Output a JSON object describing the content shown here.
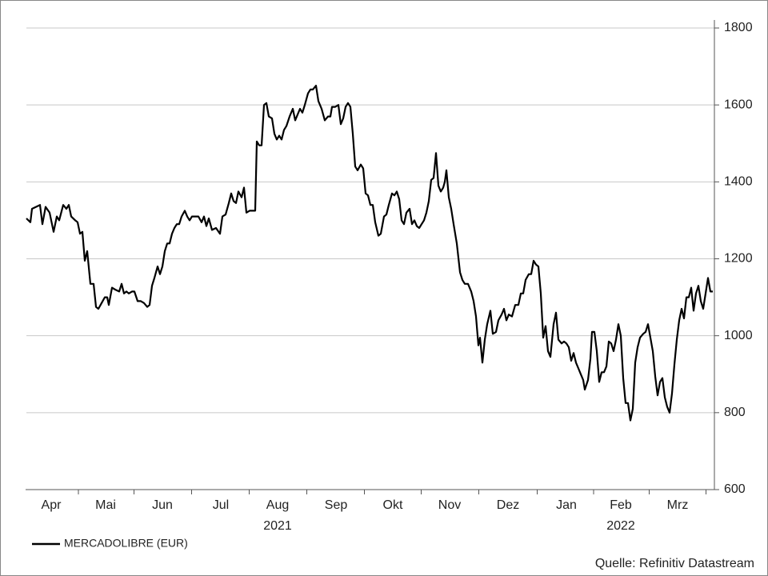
{
  "chart_data": {
    "type": "line",
    "series": [
      {
        "name": "MERCADOLIBRE (EUR)",
        "color": "#000000",
        "x": [
          33,
          38,
          40,
          45,
          50,
          53,
          57,
          62,
          67,
          71,
          74,
          79,
          83,
          86,
          89,
          94,
          97,
          100,
          103,
          106,
          109,
          113,
          117,
          120,
          123,
          127,
          131,
          134,
          136,
          140,
          144,
          149,
          152,
          155,
          158,
          161,
          165,
          168,
          172,
          176,
          180,
          184,
          187,
          190,
          193,
          197,
          200,
          203,
          206,
          209,
          212,
          215,
          218,
          221,
          224,
          227,
          231,
          234,
          237,
          240,
          244,
          248,
          252,
          255,
          258,
          261,
          265,
          270,
          275,
          278,
          282,
          286,
          289,
          292,
          295,
          298,
          302,
          305,
          308,
          312,
          316,
          319,
          321,
          324,
          327,
          330,
          333,
          336,
          340,
          343,
          346,
          349,
          352,
          355,
          358,
          362,
          366,
          369,
          372,
          375,
          378,
          381,
          385,
          388,
          391,
          395,
          398,
          402,
          406,
          410,
          413,
          415,
          419,
          423,
          426,
          429,
          432,
          435,
          438,
          441,
          444,
          447,
          451,
          454,
          457,
          460,
          463,
          466,
          469,
          473,
          476,
          480,
          483,
          486,
          490,
          493,
          496,
          499,
          502,
          505,
          508,
          512,
          515,
          518,
          521,
          524,
          527,
          530,
          533,
          536,
          539,
          542,
          545,
          548,
          551,
          554,
          556,
          558,
          561,
          564,
          567,
          571,
          575,
          578,
          581,
          585,
          589,
          592,
          595,
          598,
          600,
          603,
          606,
          609,
          613,
          616,
          620,
          623,
          627,
          630,
          633,
          636,
          640,
          644,
          648,
          651,
          654,
          657,
          661,
          664,
          667,
          670,
          673,
          676,
          679,
          682,
          685,
          688,
          692,
          695,
          698,
          702,
          705,
          708,
          711,
          714,
          717,
          720,
          723,
          726,
          729,
          731,
          735,
          738,
          740,
          743,
          746,
          749,
          752,
          755,
          758,
          761,
          764,
          767,
          770,
          773,
          776,
          779,
          782,
          785,
          788,
          791,
          794,
          797,
          800,
          804,
          807,
          810,
          813,
          816,
          819,
          822,
          825,
          828,
          831,
          834,
          837,
          840,
          843,
          846,
          849,
          852,
          855,
          858,
          861,
          864,
          867,
          870,
          873,
          876,
          879,
          882,
          885,
          888,
          891
        ],
        "values": [
          1305,
          1295,
          1330,
          1335,
          1340,
          1290,
          1335,
          1320,
          1270,
          1310,
          1300,
          1340,
          1330,
          1340,
          1310,
          1300,
          1295,
          1265,
          1270,
          1195,
          1220,
          1135,
          1135,
          1075,
          1070,
          1085,
          1100,
          1100,
          1080,
          1125,
          1120,
          1115,
          1135,
          1110,
          1115,
          1110,
          1115,
          1115,
          1090,
          1090,
          1085,
          1075,
          1080,
          1130,
          1150,
          1180,
          1160,
          1180,
          1220,
          1240,
          1240,
          1265,
          1280,
          1290,
          1290,
          1310,
          1325,
          1310,
          1300,
          1310,
          1310,
          1310,
          1295,
          1310,
          1285,
          1305,
          1275,
          1280,
          1265,
          1310,
          1315,
          1345,
          1370,
          1350,
          1345,
          1375,
          1360,
          1385,
          1320,
          1325,
          1325,
          1325,
          1505,
          1495,
          1495,
          1600,
          1605,
          1570,
          1565,
          1525,
          1510,
          1520,
          1510,
          1535,
          1545,
          1570,
          1590,
          1560,
          1575,
          1590,
          1580,
          1600,
          1630,
          1640,
          1640,
          1650,
          1610,
          1590,
          1560,
          1570,
          1570,
          1595,
          1595,
          1600,
          1550,
          1565,
          1595,
          1605,
          1595,
          1525,
          1440,
          1430,
          1445,
          1435,
          1370,
          1365,
          1340,
          1340,
          1295,
          1260,
          1265,
          1310,
          1315,
          1340,
          1370,
          1365,
          1375,
          1355,
          1300,
          1290,
          1320,
          1330,
          1290,
          1300,
          1285,
          1280,
          1290,
          1300,
          1320,
          1350,
          1405,
          1410,
          1475,
          1390,
          1375,
          1385,
          1400,
          1430,
          1360,
          1330,
          1290,
          1240,
          1165,
          1145,
          1135,
          1135,
          1115,
          1090,
          1050,
          975,
          995,
          930,
          990,
          1030,
          1065,
          1005,
          1010,
          1040,
          1055,
          1070,
          1040,
          1055,
          1050,
          1080,
          1080,
          1110,
          1110,
          1145,
          1160,
          1160,
          1195,
          1185,
          1180,
          1110,
          995,
          1025,
          960,
          945,
          1030,
          1060,
          990,
          980,
          985,
          980,
          970,
          935,
          955,
          930,
          915,
          900,
          885,
          860,
          885,
          940,
          1010,
          1010,
          960,
          880,
          905,
          905,
          920,
          985,
          980,
          960,
          990,
          1030,
          1000,
          890,
          825,
          825,
          780,
          810,
          930,
          970,
          995,
          1005,
          1010,
          1030,
          995,
          960,
          895,
          845,
          880,
          890,
          840,
          815,
          800,
          850,
          925,
          990,
          1040,
          1070,
          1045,
          1100,
          1100,
          1125,
          1065,
          1110,
          1130,
          1090,
          1070,
          1110,
          1150,
          1115,
          1115
        ]
      }
    ],
    "xlim": [
      33,
      893
    ],
    "xticks": [
      {
        "value": 64,
        "label": "Apr"
      },
      {
        "value": 132,
        "label": "Mai"
      },
      {
        "value": 203,
        "label": "Jun"
      },
      {
        "value": 276,
        "label": "Jul"
      },
      {
        "value": 347,
        "label": "Aug"
      },
      {
        "value": 420,
        "label": "Sep"
      },
      {
        "value": 491,
        "label": "Okt"
      },
      {
        "value": 562,
        "label": "Nov"
      },
      {
        "value": 635,
        "label": "Dez"
      },
      {
        "value": 708,
        "label": "Jan"
      },
      {
        "value": 776,
        "label": "Feb"
      },
      {
        "value": 847,
        "label": "Mrz"
      }
    ],
    "year_labels": [
      {
        "value": 347,
        "label": "2021"
      },
      {
        "value": 776,
        "label": "2022"
      }
    ],
    "ylim": [
      600,
      1800
    ],
    "yticks": [
      600,
      800,
      1000,
      1200,
      1400,
      1600,
      1800
    ],
    "grid": true,
    "source": "Quelle: Refinitiv Datastream"
  }
}
